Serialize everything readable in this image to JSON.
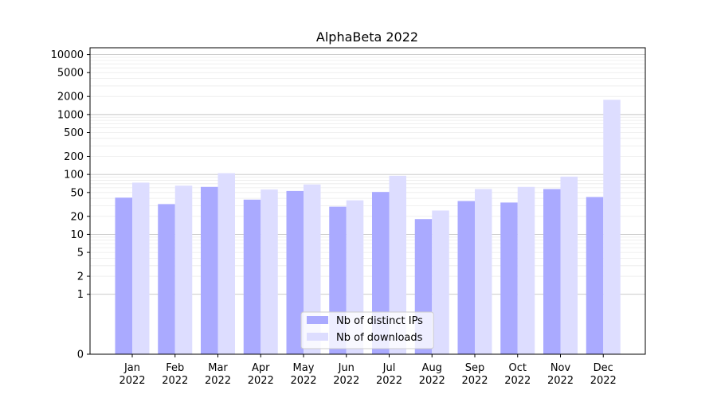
{
  "chart_data": {
    "type": "bar",
    "title": "AlphaBeta 2022",
    "xlabel": "",
    "ylabel": "",
    "categories": [
      "Jan\n2022",
      "Feb\n2022",
      "Mar\n2022",
      "Apr\n2022",
      "May\n2022",
      "Jun\n2022",
      "Jul\n2022",
      "Aug\n2022",
      "Sep\n2022",
      "Oct\n2022",
      "Nov\n2022",
      "Dec\n2022"
    ],
    "series": [
      {
        "name": "Nb of distinct IPs",
        "color": "#aaaaff",
        "values": [
          41,
          32,
          62,
          38,
          53,
          29,
          51,
          18,
          36,
          34,
          57,
          42
        ]
      },
      {
        "name": "Nb of downloads",
        "color": "#ddddff",
        "values": [
          73,
          65,
          105,
          56,
          68,
          37,
          95,
          25,
          57,
          62,
          92,
          1760
        ]
      }
    ],
    "yscale": "symlog",
    "ylim": [
      0,
      13000
    ],
    "yticks": [
      0,
      1,
      2,
      5,
      10,
      20,
      50,
      100,
      200,
      500,
      1000,
      2000,
      5000,
      10000
    ],
    "grid": true,
    "legend_position": "bottom-center"
  }
}
